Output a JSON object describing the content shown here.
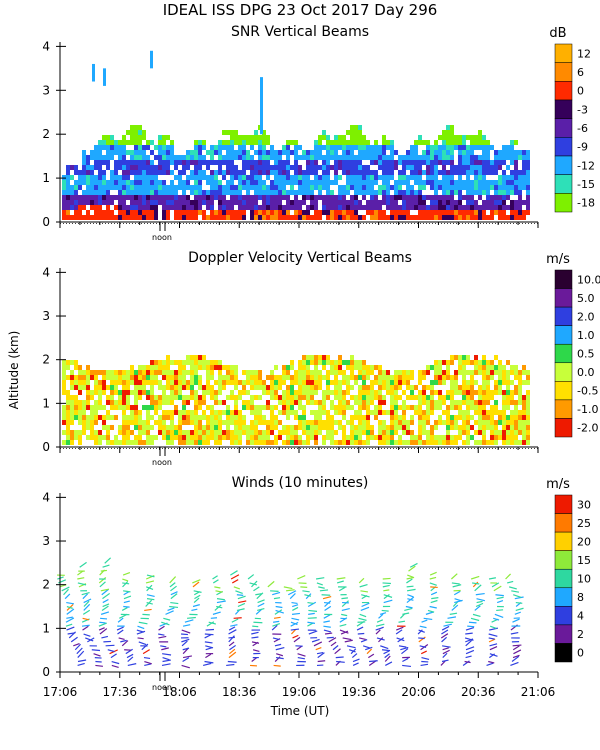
{
  "title": "IDEAL ISS DPG  23 Oct 2017 Day 296",
  "ylabel": "Altitude (km)",
  "xlabel": "Time (UT)",
  "noon_label": "noon",
  "time_ticks": [
    "17:06",
    "17:36",
    "18:06",
    "18:36",
    "19:06",
    "19:36",
    "20:06",
    "20:36",
    "21:06"
  ],
  "chart_data": [
    {
      "type": "heatmap",
      "title": "SNR Vertical Beams",
      "xlim": [
        "17:06",
        "21:06"
      ],
      "ylim": [
        0,
        4.1
      ],
      "yticks": [
        0,
        1,
        2,
        3,
        4
      ],
      "colorbar": {
        "unit": "dB",
        "labels": [
          "12",
          "6",
          "0",
          "-3",
          "-6",
          "-9",
          "-12",
          "-15",
          "-18"
        ],
        "colors": [
          "#ffb000",
          "#ff8a00",
          "#ff2a00",
          "#35005a",
          "#5a1fa8",
          "#2f3fe0",
          "#1fa8ff",
          "#2ee0b8",
          "#7ef000"
        ]
      },
      "profile": [
        {
          "alt": 0.1,
          "value": "0"
        },
        {
          "alt": 0.4,
          "value": "-6"
        },
        {
          "alt": 0.8,
          "value": "-12"
        },
        {
          "alt": 1.2,
          "value": "-9"
        },
        {
          "alt": 1.6,
          "value": "-12"
        },
        {
          "alt": 1.9,
          "value": "-18"
        }
      ]
    },
    {
      "type": "heatmap",
      "title": "Doppler Velocity Vertical Beams",
      "xlim": [
        "17:06",
        "21:06"
      ],
      "ylim": [
        0,
        4.1
      ],
      "yticks": [
        0,
        1,
        2,
        3,
        4
      ],
      "colorbar": {
        "unit": "m/s",
        "labels": [
          "10.0",
          "5.0",
          "2.0",
          "1.0",
          "0.5",
          "0.0",
          "-0.5",
          "-1.0",
          "-2.0"
        ],
        "colors": [
          "#2a0030",
          "#6a1a9a",
          "#2f3fe0",
          "#1fa8ff",
          "#2ed84a",
          "#c8ff3a",
          "#ffe000",
          "#ff9a00",
          "#ee1a00"
        ]
      },
      "dominant_value": "0.0"
    },
    {
      "type": "scatter",
      "title": "Winds (10 minutes)",
      "xlim": [
        "17:06",
        "21:06"
      ],
      "ylim": [
        0,
        4.1
      ],
      "yticks": [
        0,
        1,
        2,
        3,
        4
      ],
      "colorbar": {
        "unit": "m/s",
        "labels": [
          "30",
          "25",
          "20",
          "15",
          "10",
          "8",
          "4",
          "2",
          "0"
        ],
        "colors": [
          "#ee1a00",
          "#ff7a00",
          "#ffd000",
          "#8eea3a",
          "#2ed8a0",
          "#1fa8ff",
          "#2f3fe0",
          "#6a1a9a",
          "#000000"
        ]
      },
      "profiles": [
        {
          "time": "17:10",
          "top": 2.3
        },
        {
          "time": "17:20",
          "top": 2.4
        },
        {
          "time": "17:30",
          "top": 2.5
        },
        {
          "time": "17:40",
          "top": 2.3
        },
        {
          "time": "17:50",
          "top": 2.3
        },
        {
          "time": "18:00",
          "top": 2.1
        },
        {
          "time": "18:10",
          "top": 2.1
        },
        {
          "time": "18:20",
          "top": 2.2
        },
        {
          "time": "18:30",
          "top": 2.3
        },
        {
          "time": "18:40",
          "top": 2.2
        },
        {
          "time": "18:50",
          "top": 2.0
        },
        {
          "time": "19:00",
          "top": 2.0
        },
        {
          "time": "19:10",
          "top": 2.2
        },
        {
          "time": "19:20",
          "top": 2.2
        },
        {
          "time": "19:30",
          "top": 2.2
        },
        {
          "time": "19:40",
          "top": 2.1
        },
        {
          "time": "19:50",
          "top": 2.2
        },
        {
          "time": "20:00",
          "top": 2.4
        },
        {
          "time": "20:10",
          "top": 2.3
        },
        {
          "time": "20:20",
          "top": 2.2
        },
        {
          "time": "20:30",
          "top": 2.2
        },
        {
          "time": "20:40",
          "top": 2.2
        },
        {
          "time": "20:50",
          "top": 2.2
        }
      ]
    }
  ]
}
